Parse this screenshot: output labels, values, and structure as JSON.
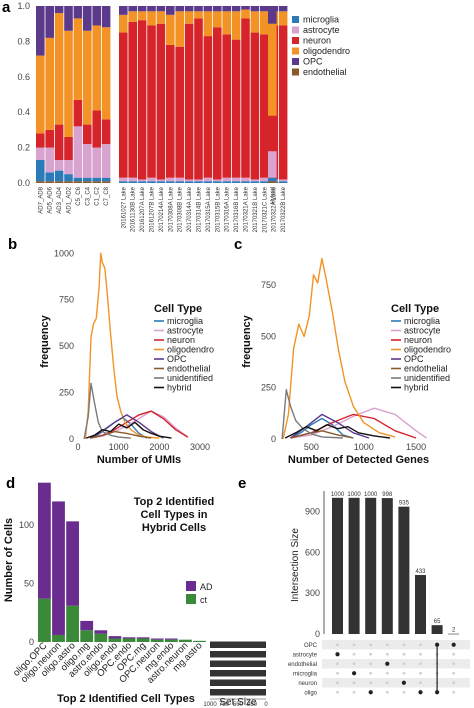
{
  "panels": {
    "a": {
      "label": "a",
      "chart_data": {
        "type": "bar",
        "stacked": true,
        "ylim": [
          0,
          1.0
        ],
        "yticks": [
          "0.0",
          "0.2",
          "0.4",
          "0.6",
          "0.8",
          "1.0"
        ],
        "legend": {
          "placement": "right",
          "entries": [
            "microglia",
            "astrocyte",
            "neuron",
            "oligodendro",
            "OPC",
            "endothelial"
          ]
        },
        "colors": {
          "microglia": "#2b7bb9",
          "astrocyte": "#d9a3d0",
          "neuron": "#d6242a",
          "oligodendro": "#f39325",
          "OPC": "#5b3a8c",
          "endothelial": "#8a5a2b"
        },
        "group1_categories": [
          "AD7_AD8",
          "AD5_AD6",
          "AD3_AD4",
          "AD1_AD2",
          "C5_C6",
          "C3_C4",
          "C1_C2",
          "C7_C8"
        ],
        "group1": [
          [
            0.12,
            0.07,
            0.08,
            0.44,
            0.28,
            0.01
          ],
          [
            0.05,
            0.14,
            0.1,
            0.52,
            0.18,
            0.01
          ],
          [
            0.06,
            0.06,
            0.2,
            0.63,
            0.04,
            0.01
          ],
          [
            0.04,
            0.08,
            0.13,
            0.6,
            0.14,
            0.01
          ],
          [
            0.02,
            0.29,
            0.15,
            0.46,
            0.07,
            0.01
          ],
          [
            0.02,
            0.19,
            0.11,
            0.53,
            0.14,
            0.01
          ],
          [
            0.02,
            0.17,
            0.21,
            0.48,
            0.11,
            0.01
          ],
          [
            0.02,
            0.19,
            0.14,
            0.52,
            0.12,
            0.01
          ]
        ],
        "group2_categories": [
          "20161027 Lake",
          "20161130B Lake",
          "20161207A Lake",
          "20161207B Lake",
          "20170214A Lake",
          "20170308A Lake",
          "20170308B Lake",
          "20170314A Lake",
          "20170314B Lake",
          "20170315A Lake",
          "20170315B Lake",
          "20170316A Lake",
          "20170316B Lake",
          "20170321A Lake",
          "20170321B Lake",
          "20170321C Lake",
          "20170322A Lake",
          "20170322B Lake"
        ],
        "group2": [
          [
            0.01,
            0.02,
            0.82,
            0.1,
            0.05,
            0.0
          ],
          [
            0.01,
            0.02,
            0.88,
            0.06,
            0.03,
            0.0
          ],
          [
            0.01,
            0.01,
            0.9,
            0.05,
            0.03,
            0.0
          ],
          [
            0.01,
            0.02,
            0.86,
            0.08,
            0.03,
            0.0
          ],
          [
            0.01,
            0.01,
            0.88,
            0.07,
            0.03,
            0.0
          ],
          [
            0.01,
            0.02,
            0.75,
            0.17,
            0.05,
            0.0
          ],
          [
            0.01,
            0.02,
            0.74,
            0.2,
            0.03,
            0.0
          ],
          [
            0.01,
            0.01,
            0.88,
            0.07,
            0.03,
            0.0
          ],
          [
            0.01,
            0.01,
            0.91,
            0.04,
            0.03,
            0.0
          ],
          [
            0.01,
            0.02,
            0.8,
            0.14,
            0.03,
            0.0
          ],
          [
            0.01,
            0.01,
            0.86,
            0.09,
            0.03,
            0.0
          ],
          [
            0.01,
            0.02,
            0.81,
            0.13,
            0.03,
            0.0
          ],
          [
            0.01,
            0.02,
            0.78,
            0.16,
            0.03,
            0.0
          ],
          [
            0.01,
            0.02,
            0.9,
            0.05,
            0.02,
            0.0
          ],
          [
            0.01,
            0.01,
            0.83,
            0.12,
            0.03,
            0.0
          ],
          [
            0.01,
            0.02,
            0.81,
            0.13,
            0.03,
            0.0
          ],
          [
            0.01,
            0.01,
            0.87,
            0.08,
            0.03,
            0.0
          ],
          [
            0.01,
            0.01,
            0.87,
            0.08,
            0.03,
            0.0
          ]
        ],
        "group3_categories": [
          "Hybrid"
        ],
        "group3": [
          [
            0.02,
            0.15,
            0.2,
            0.52,
            0.1,
            0.01
          ]
        ]
      }
    },
    "b": {
      "label": "b",
      "chart_data": {
        "type": "line",
        "xlabel": "Number of UMIs",
        "ylabel": "frequency",
        "xlim": [
          0,
          3000
        ],
        "ylim": [
          0,
          1050
        ],
        "xticks": [
          "0",
          "1000",
          "2000",
          "3000"
        ],
        "yticks": [
          "0",
          "250",
          "500",
          "750",
          "1000"
        ],
        "legend": {
          "title": "Cell Type",
          "placement": "right"
        },
        "series": [
          {
            "name": "microglia",
            "color": "#2b7bb9",
            "x": [
              300,
              500,
              700,
              900,
              1100,
              1300,
              1500,
              1700
            ],
            "y": [
              5,
              25,
              60,
              90,
              115,
              80,
              30,
              5
            ]
          },
          {
            "name": "astrocyte",
            "color": "#d9a3d0",
            "x": [
              300,
              600,
              900,
              1200,
              1500,
              1800,
              2100,
              2400,
              2700
            ],
            "y": [
              5,
              15,
              40,
              70,
              110,
              150,
              120,
              60,
              10
            ]
          },
          {
            "name": "neuron",
            "color": "#d6242a",
            "x": [
              300,
              600,
              900,
              1200,
              1500,
              1800,
              2100,
              2400,
              2700
            ],
            "y": [
              5,
              20,
              50,
              90,
              130,
              150,
              110,
              50,
              10
            ]
          },
          {
            "name": "oligodendro",
            "color": "#f39325",
            "x": [
              180,
              250,
              320,
              380,
              450,
              520,
              560,
              600,
              660,
              720,
              800,
              880,
              960,
              1050,
              1150,
              1300,
              1500,
              1700,
              2000
            ],
            "y": [
              0,
              150,
              550,
              620,
              650,
              820,
              1000,
              950,
              920,
              780,
              570,
              380,
              230,
              150,
              90,
              50,
              20,
              10,
              5
            ]
          },
          {
            "name": "OPC",
            "color": "#5b3a8c",
            "x": [
              300,
              600,
              900,
              1200,
              1500,
              1800,
              2100
            ],
            "y": [
              5,
              40,
              90,
              130,
              90,
              40,
              5
            ]
          },
          {
            "name": "endothelial",
            "color": "#8a5a2b",
            "x": [
              300,
              600,
              900,
              1200,
              1500,
              1800
            ],
            "y": [
              5,
              20,
              40,
              30,
              15,
              5
            ]
          },
          {
            "name": "unidentified",
            "color": "#7a7a7a",
            "x": [
              150,
              250,
              320,
              400,
              500,
              600,
              800,
              1000,
              1300
            ],
            "y": [
              0,
              120,
              300,
              200,
              90,
              40,
              20,
              10,
              5
            ]
          },
          {
            "name": "hybrid",
            "color": "#111111",
            "x": [
              200,
              400,
              600,
              800,
              1000,
              1200,
              1400,
              1600,
              1800,
              2000,
              2300
            ],
            "y": [
              5,
              20,
              50,
              40,
              80,
              60,
              90,
              50,
              30,
              15,
              5
            ]
          }
        ]
      }
    },
    "c": {
      "label": "c",
      "chart_data": {
        "type": "line",
        "xlabel": "Number of Detected Genes",
        "ylabel": "frequency",
        "xlim": [
          200,
          1700
        ],
        "ylim": [
          0,
          950
        ],
        "xticks": [
          "500",
          "1000",
          "1500"
        ],
        "yticks": [
          "0",
          "250",
          "500",
          "750"
        ],
        "legend": {
          "title": "Cell Type",
          "placement": "right"
        },
        "series": [
          {
            "name": "microglia",
            "color": "#2b7bb9",
            "x": [
              300,
              400,
              500,
              600,
              700,
              800,
              900
            ],
            "y": [
              5,
              30,
              70,
              100,
              70,
              20,
              5
            ]
          },
          {
            "name": "astrocyte",
            "color": "#d9a3d0",
            "x": [
              300,
              500,
              700,
              900,
              1100,
              1300,
              1500,
              1600
            ],
            "y": [
              5,
              20,
              60,
              110,
              150,
              120,
              40,
              5
            ]
          },
          {
            "name": "neuron",
            "color": "#d6242a",
            "x": [
              300,
              500,
              700,
              900,
              1100,
              1300,
              1500
            ],
            "y": [
              5,
              30,
              80,
              120,
              100,
              40,
              5
            ]
          },
          {
            "name": "oligodendro",
            "color": "#f39325",
            "x": [
              230,
              280,
              330,
              380,
              430,
              480,
              520,
              560,
              600,
              640,
              700,
              760,
              820,
              900,
              1000,
              1150,
              1300
            ],
            "y": [
              0,
              120,
              440,
              560,
              500,
              600,
              800,
              760,
              880,
              780,
              620,
              430,
              280,
              160,
              80,
              30,
              10
            ]
          },
          {
            "name": "OPC",
            "color": "#5b3a8c",
            "x": [
              300,
              450,
              600,
              750,
              900,
              1050
            ],
            "y": [
              5,
              60,
              120,
              80,
              30,
              5
            ]
          },
          {
            "name": "endothelial",
            "color": "#8a5a2b",
            "x": [
              300,
              450,
              600,
              750,
              900
            ],
            "y": [
              5,
              25,
              40,
              20,
              5
            ]
          },
          {
            "name": "unidentified",
            "color": "#7a7a7a",
            "x": [
              220,
              260,
              300,
              350,
              420,
              500,
              600,
              800
            ],
            "y": [
              0,
              240,
              160,
              90,
              50,
              25,
              10,
              5
            ]
          },
          {
            "name": "hybrid",
            "color": "#111111",
            "x": [
              250,
              350,
              450,
              550,
              650,
              750,
              850,
              950,
              1100,
              1250
            ],
            "y": [
              5,
              30,
              60,
              40,
              70,
              50,
              60,
              30,
              15,
              5
            ]
          }
        ]
      }
    },
    "d": {
      "label": "d",
      "chart_data": {
        "type": "bar",
        "stacked": true,
        "title": "Top 2 Identified Cell Types in Hybrid Cells",
        "title_lines": [
          "Top 2 Identified",
          "Cell Types in",
          "Hybrid Cells"
        ],
        "xlabel": "Top 2 Identified Cell Types",
        "ylabel": "Number of Cells",
        "ylim": [
          0,
          140
        ],
        "yticks": [
          "0",
          "50",
          "100"
        ],
        "legend": {
          "placement": "right",
          "entries": [
            "AD",
            "ct"
          ]
        },
        "colors": {
          "AD": "#6a2d8f",
          "ct": "#3a8a3a"
        },
        "categories": [
          "oligo.OPC",
          "oligo.neuron",
          "oligo.astro",
          "oligo.mg",
          "astro.endo",
          "oligo.endo",
          "OPC.endo",
          "OPC.mg",
          "OPC.neuron",
          "mg.endo",
          "astro.neuron",
          "mg.astro"
        ],
        "category_colors": [
          "#f39325",
          "#f39325",
          "#f39325",
          "#f39325",
          "#d9a3d0",
          "#f39325",
          "#5b3a8c",
          "#5b3a8c",
          "#5b3a8c",
          "#2b7bb9",
          "#d9a3d0",
          "#2b7bb9"
        ],
        "series": [
          {
            "name": "AD",
            "values": [
              99,
              114,
              72,
              8,
              3,
              2,
              1,
              1,
              1,
              1,
              0,
              0
            ]
          },
          {
            "name": "ct",
            "values": [
              37,
              6,
              31,
              10,
              7,
              3,
              3,
              3,
              2,
              2,
              2,
              1
            ]
          }
        ]
      }
    },
    "e": {
      "label": "e",
      "chart_data": {
        "type": "bar",
        "ylabel": "Intersection Size",
        "xlabel": "Set Size",
        "ylim": [
          0,
          1000
        ],
        "yticks": [
          "0",
          "300",
          "600",
          "900"
        ],
        "bars": [
          {
            "value": 1000,
            "label": "1000"
          },
          {
            "value": 1000,
            "label": "1000"
          },
          {
            "value": 1000,
            "label": "1000"
          },
          {
            "value": 998,
            "label": "998"
          },
          {
            "value": 935,
            "label": "935"
          },
          {
            "value": 433,
            "label": "433"
          },
          {
            "value": 65,
            "label": "65"
          },
          {
            "value": 2,
            "label": "2"
          }
        ],
        "sets": [
          "OPC",
          "astrocyte",
          "endothelial",
          "microglia",
          "neuron",
          "oligo"
        ],
        "set_sizes": [
          1000,
          1000,
          1000,
          1000,
          1000,
          1000
        ],
        "set_size_ticks": [
          "1000",
          "750",
          "500",
          "250",
          "0"
        ],
        "matrix": [
          [
            0,
            0,
            0,
            0,
            0,
            0,
            1,
            1
          ],
          [
            1,
            0,
            0,
            0,
            0,
            0,
            0,
            0
          ],
          [
            0,
            0,
            0,
            1,
            0,
            0,
            0,
            0
          ],
          [
            0,
            1,
            0,
            0,
            0,
            0,
            0,
            0
          ],
          [
            0,
            0,
            0,
            0,
            1,
            0,
            0,
            0
          ],
          [
            0,
            0,
            1,
            0,
            0,
            1,
            1,
            0
          ]
        ]
      }
    }
  }
}
